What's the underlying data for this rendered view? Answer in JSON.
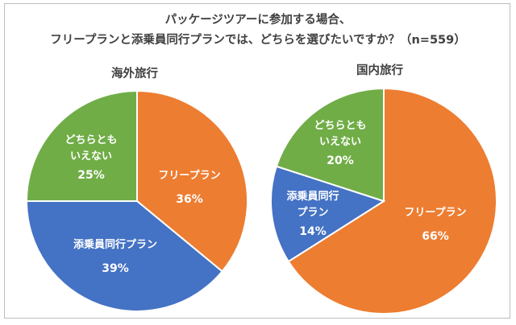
{
  "title_line1": "パッケージツアーに参加する場合、",
  "title_line2": "フリープランと添乗員同行プランでは、どちらを選びたいですか？（n=559）",
  "colors": {
    "free_plan": "#ED7D31",
    "escorted_plan": "#4472C4",
    "neither": "#70AD47",
    "label_text": "#FFFFFF"
  },
  "chart_data": [
    {
      "type": "pie",
      "title": "海外旅行",
      "slices": [
        {
          "label": "フリープラン",
          "value": 36,
          "display": "36%",
          "color": "#ED7D31"
        },
        {
          "label": "添乗員同行プラン",
          "value": 39,
          "display": "39%",
          "color": "#4472C4"
        },
        {
          "label": "どちらともいえない",
          "value": 25,
          "display": "25%",
          "color": "#70AD47"
        }
      ]
    },
    {
      "type": "pie",
      "title": "国内旅行",
      "slices": [
        {
          "label": "フリープラン",
          "value": 66,
          "display": "66%",
          "color": "#ED7D31"
        },
        {
          "label": "添乗員同行プラン",
          "value": 14,
          "display": "14%",
          "color": "#4472C4"
        },
        {
          "label": "どちらともいえない",
          "value": 20,
          "display": "20%",
          "color": "#70AD47"
        }
      ]
    }
  ]
}
